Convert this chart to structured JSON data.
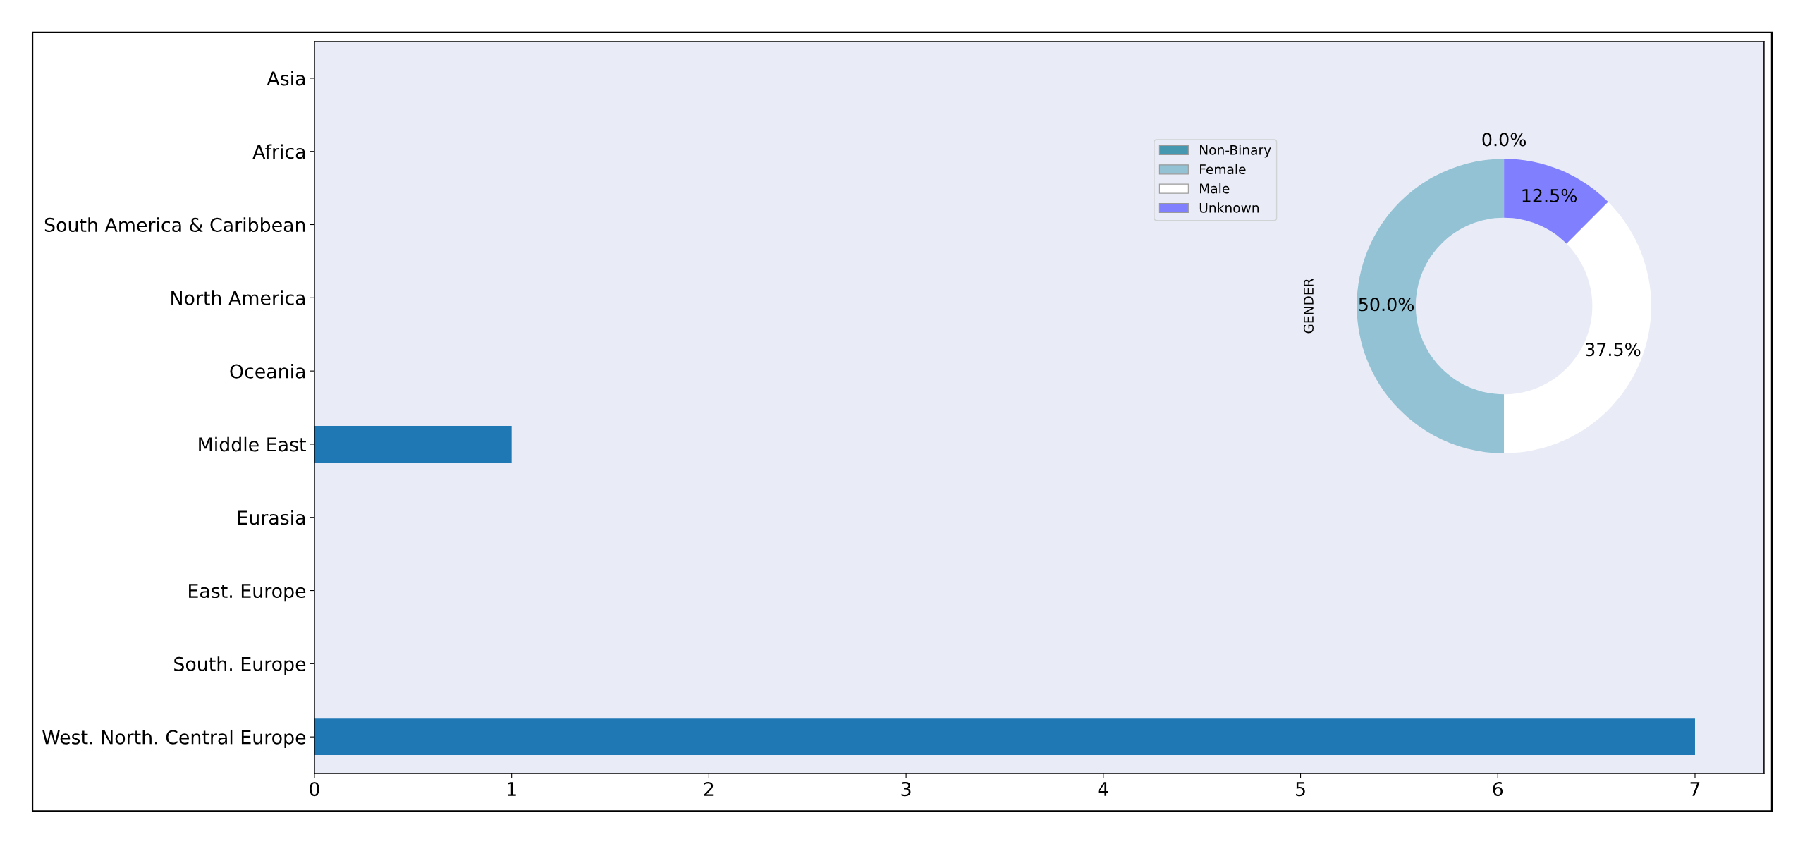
{
  "chart_data": [
    {
      "type": "bar",
      "orientation": "horizontal",
      "categories": [
        "Asia",
        "Africa",
        "South America & Caribbean",
        "North America",
        "Oceania",
        "Middle East",
        "Eurasia",
        "East. Europe",
        "South. Europe",
        "West. North. Central Europe"
      ],
      "values": [
        0,
        0,
        0,
        0,
        0,
        1,
        0,
        0,
        0,
        7
      ],
      "color": "#1f77b4",
      "xlim": [
        0,
        7.35
      ],
      "xticks": [
        0,
        1,
        2,
        3,
        4,
        5,
        6,
        7
      ]
    },
    {
      "type": "donut",
      "ylabel": "GENDER",
      "categories": [
        "Non-Binary",
        "Female",
        "Male",
        "Unknown"
      ],
      "values": [
        0,
        50,
        37.5,
        12.5
      ],
      "colors": [
        "#4598b0",
        "#92c2d4",
        "#ffffff",
        "#8080ff"
      ],
      "value_labels": [
        "0.0%",
        "50.0%",
        "37.5%",
        "12.5%"
      ],
      "legend": "top left"
    }
  ]
}
